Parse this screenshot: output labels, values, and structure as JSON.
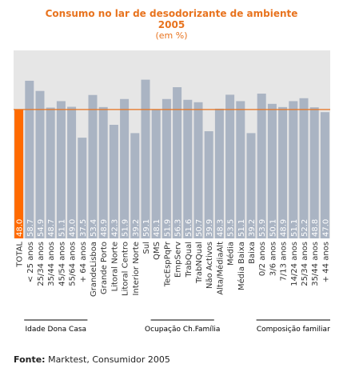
{
  "chart_data": {
    "type": "bar",
    "title": "Consumo no lar de desodorizante de ambiente",
    "year": "2005",
    "subtitle": "(em %)",
    "categories": [
      "TOTAL",
      "< 25 anos",
      "25/34 anos",
      "35/44 anos",
      "45/54 anos",
      "55/64 anos",
      "+ 64 anos",
      "GrandeLisboa",
      "Grande Porto",
      "Litoral Norte",
      "Litoral Centro",
      "Interior Norte",
      "Sul",
      "QMS",
      "TecEspPqPr",
      "EmpServ",
      "TrabQual",
      "TrabNQual",
      "Não Activos",
      "Alta/MédiaAlt",
      "Média",
      "Média Baixa",
      "Baixa",
      "0/2 anos",
      "3/6 anos",
      "7/13 anos",
      "14/24 anos",
      "25/34 anos",
      "35/44 anos",
      "+ 44 anos"
    ],
    "values": [
      48.0,
      58.7,
      54.9,
      48.7,
      51.1,
      49.0,
      37.5,
      53.4,
      48.9,
      42.3,
      51.9,
      39.2,
      59.1,
      48.1,
      51.9,
      56.3,
      51.6,
      50.7,
      39.9,
      48.3,
      53.5,
      51.1,
      39.2,
      53.9,
      50.1,
      48.9,
      51.1,
      52.2,
      48.8,
      47.0
    ],
    "value_labels": [
      "48.0",
      "58.7",
      "54.9",
      "48.7",
      "51.1",
      "49.0",
      "37.5",
      "53.4",
      "48.9",
      "42.3",
      "51.9",
      "39.2",
      "59.1",
      "48.1",
      "51.9",
      "56.3",
      "51.6",
      "50.7",
      "39.9",
      "48.3",
      "53.5",
      "51.1",
      "39.2",
      "53.9",
      "50.1",
      "48.9",
      "51.1",
      "52.2",
      "48.8",
      "47.0"
    ],
    "reference_line": 48.0,
    "ylim": [
      0,
      70
    ],
    "colors": {
      "total_bar": "#ff6a00",
      "bars": "#aab4c3",
      "plot_bg": "#e6e6e6",
      "reference_line": "#e8731e",
      "value_text": "#ffffff",
      "title": "#e8731e"
    },
    "groups": [
      {
        "label": "Idade Dona Casa",
        "from_index": 1,
        "to_index": 6
      },
      {
        "label": "Ocupação Ch.Família",
        "from_index": 13,
        "to_index": 18
      },
      {
        "label": "Composição familiar",
        "from_index": 23,
        "to_index": 29
      }
    ]
  },
  "source": {
    "label": "Fonte:",
    "text": "Marktest, Consumidor 2005"
  }
}
